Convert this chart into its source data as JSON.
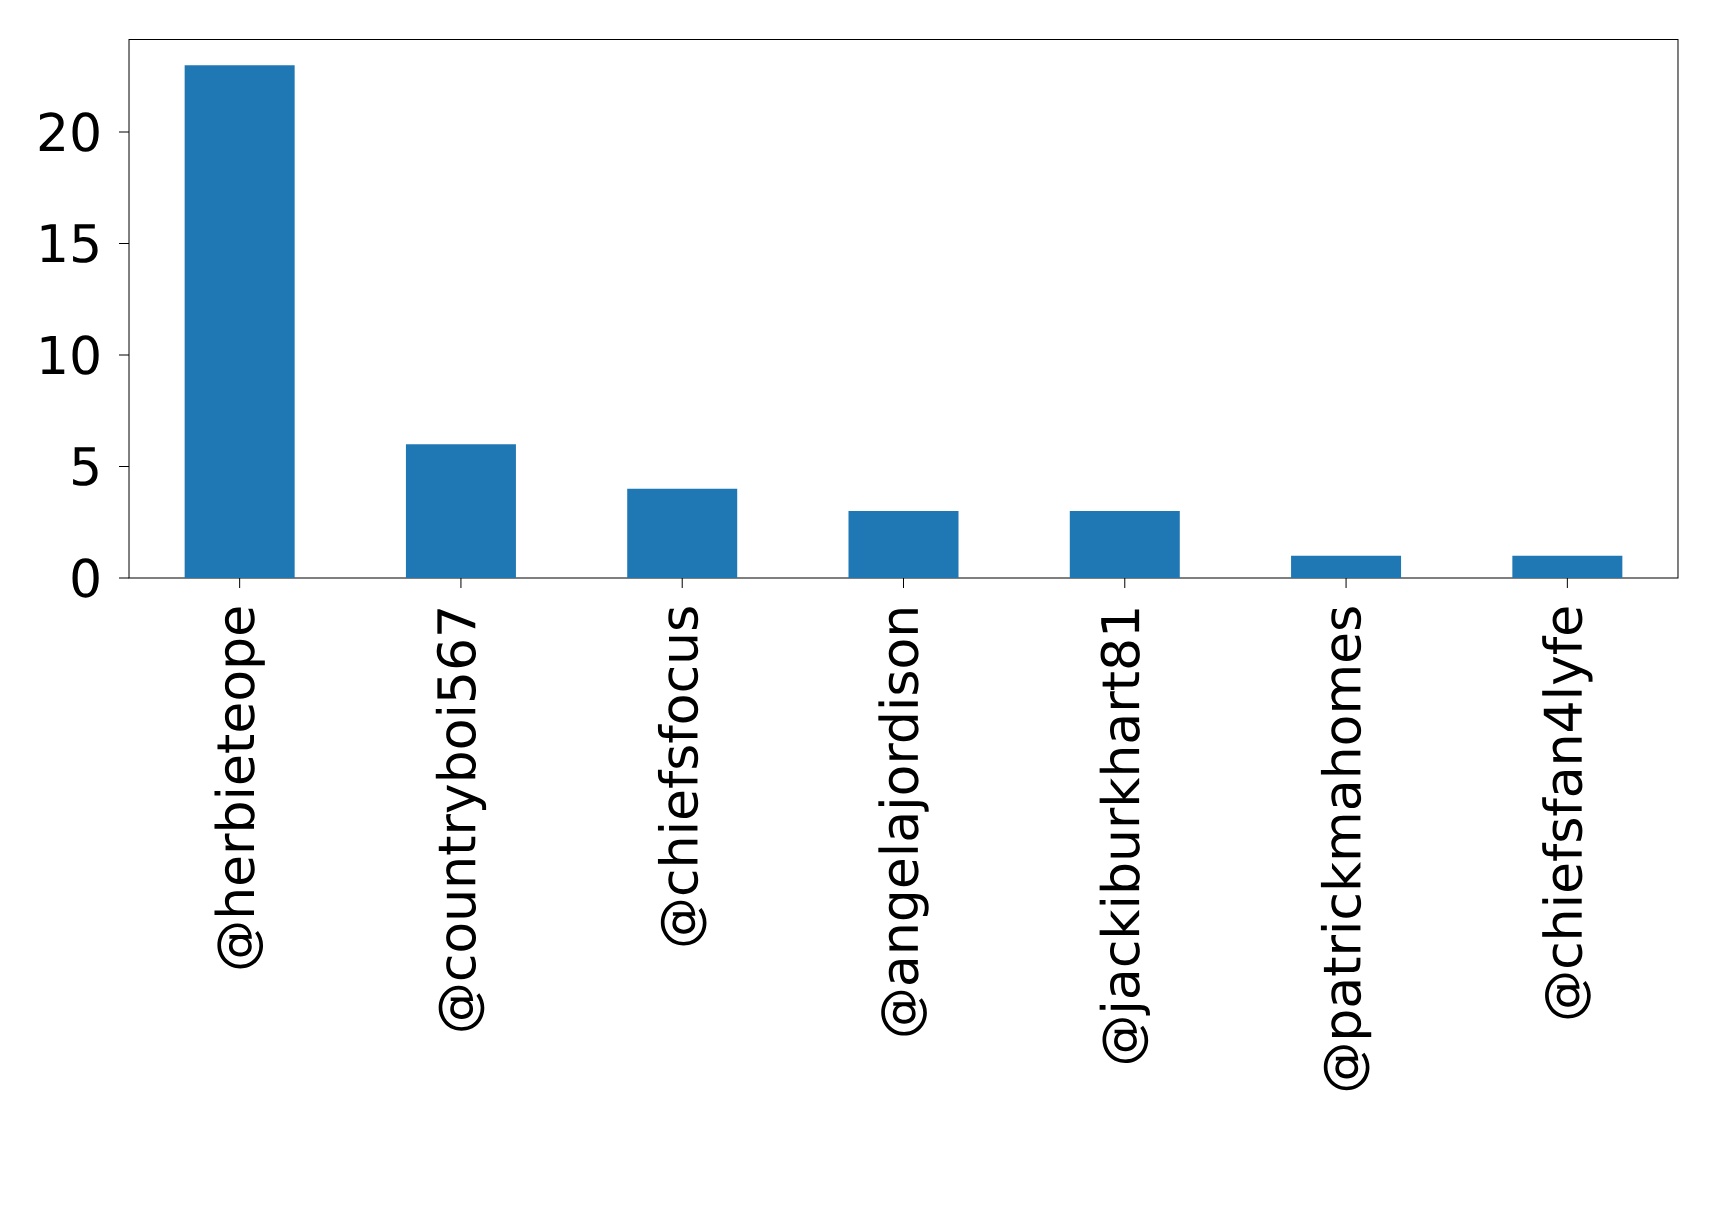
{
  "chart_data": {
    "type": "bar",
    "categories": [
      "@herbieteope",
      "@countryboi567",
      "@chiefsfocus",
      "@angelajordison",
      "@jackiburkhart81",
      "@patrickmahomes",
      "@chiefsfan4lyfe"
    ],
    "values": [
      23,
      6,
      4,
      3,
      3,
      1,
      1
    ],
    "color": "#1f77b4",
    "ylim": [
      0,
      24.15
    ],
    "yticks": [
      0,
      5,
      10,
      15,
      20
    ]
  }
}
